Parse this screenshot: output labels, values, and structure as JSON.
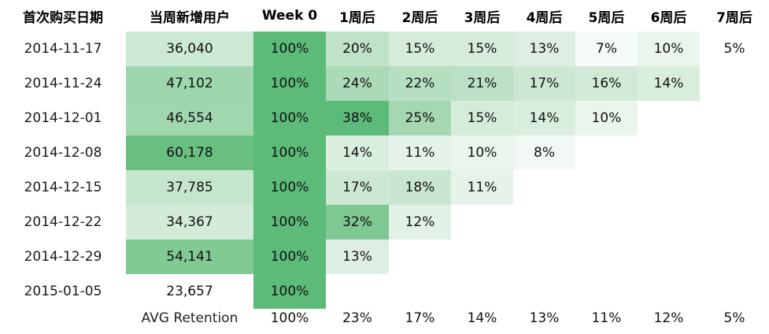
{
  "chart_data": {
    "type": "table",
    "title": "",
    "headers": [
      "首次购买日期",
      "当周新增用户",
      "Week 0",
      "1周后",
      "2周后",
      "3周后",
      "4周后",
      "5周后",
      "6周后",
      "7周后"
    ],
    "rows": [
      {
        "date": "2014-11-17",
        "users": "36,040",
        "users_value": 36040,
        "retention": [
          "100%",
          "20%",
          "15%",
          "15%",
          "13%",
          "7%",
          "10%",
          "5%"
        ]
      },
      {
        "date": "2014-11-24",
        "users": "47,102",
        "users_value": 47102,
        "retention": [
          "100%",
          "24%",
          "22%",
          "21%",
          "17%",
          "16%",
          "14%"
        ]
      },
      {
        "date": "2014-12-01",
        "users": "46,554",
        "users_value": 46554,
        "retention": [
          "100%",
          "38%",
          "25%",
          "15%",
          "14%",
          "10%"
        ]
      },
      {
        "date": "2014-12-08",
        "users": "60,178",
        "users_value": 60178,
        "retention": [
          "100%",
          "14%",
          "11%",
          "10%",
          "8%"
        ]
      },
      {
        "date": "2014-12-15",
        "users": "37,785",
        "users_value": 37785,
        "retention": [
          "100%",
          "17%",
          "18%",
          "11%"
        ]
      },
      {
        "date": "2014-12-22",
        "users": "34,367",
        "users_value": 34367,
        "retention": [
          "100%",
          "32%",
          "12%"
        ]
      },
      {
        "date": "2014-12-29",
        "users": "54,141",
        "users_value": 54141,
        "retention": [
          "100%",
          "13%"
        ]
      },
      {
        "date": "2015-01-05",
        "users": "23,657",
        "users_value": 23657,
        "retention": [
          "100%"
        ]
      }
    ],
    "avg_label": "AVG Retention",
    "avg_retention": [
      "100%",
      "23%",
      "17%",
      "14%",
      "13%",
      "11%",
      "12%",
      "5%"
    ],
    "colors": {
      "low": "#ffffff",
      "mid": "#b9dfc3",
      "high": "#5dbb79",
      "users_low": "#ffffff",
      "users_high": "#68bf7f"
    }
  }
}
